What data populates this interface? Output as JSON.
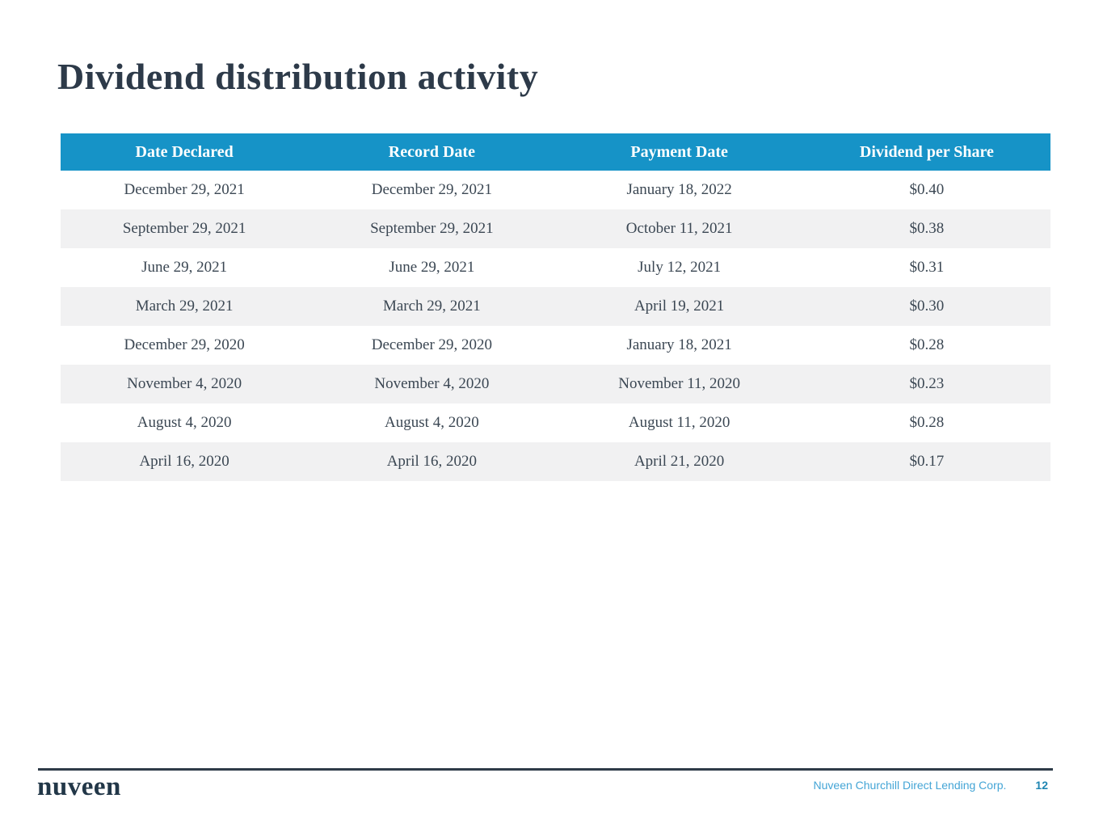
{
  "page": {
    "title": "Dividend distribution activity"
  },
  "table": {
    "headers": [
      "Date Declared",
      "Record Date",
      "Payment Date",
      "Dividend per Share"
    ],
    "rows": [
      [
        "December 29, 2021",
        "December 29, 2021",
        "January 18, 2022",
        "$0.40"
      ],
      [
        "September 29, 2021",
        "September 29, 2021",
        "October 11, 2021",
        "$0.38"
      ],
      [
        "June 29, 2021",
        "June 29, 2021",
        "July 12, 2021",
        "$0.31"
      ],
      [
        "March 29, 2021",
        "March 29, 2021",
        "April 19, 2021",
        "$0.30"
      ],
      [
        "December 29, 2020",
        "December 29, 2020",
        "January 18, 2021",
        "$0.28"
      ],
      [
        "November 4, 2020",
        "November 4, 2020",
        "November 11, 2020",
        "$0.23"
      ],
      [
        "August 4, 2020",
        "August 4, 2020",
        "August 11, 2020",
        "$0.28"
      ],
      [
        "April 16, 2020",
        "April 16, 2020",
        "April 21, 2020",
        "$0.17"
      ]
    ]
  },
  "footer": {
    "logo": "nuveen",
    "company": "Nuveen Churchill Direct Lending Corp.",
    "page_number": "12"
  },
  "colors": {
    "header_bg": "#1693c7",
    "row_alt_bg": "#f1f1f2",
    "title_text": "#2d3a49",
    "body_text": "#3b4753",
    "footer_company": "#44a5d6",
    "footer_page": "#1e85b2",
    "rule_color": "#2e3b48"
  }
}
